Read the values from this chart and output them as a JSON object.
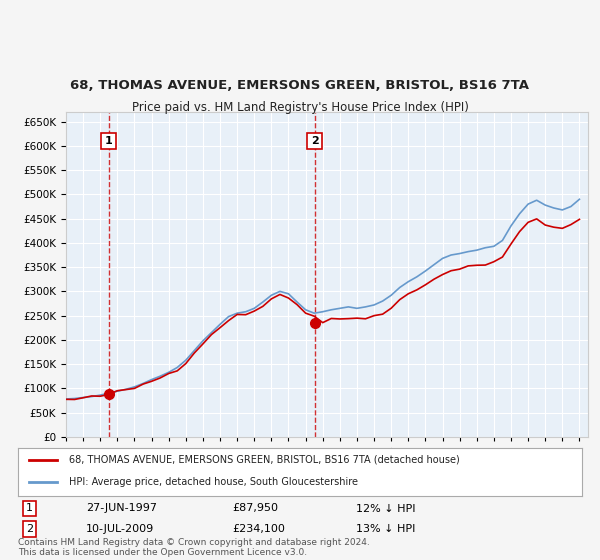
{
  "title1": "68, THOMAS AVENUE, EMERSONS GREEN, BRISTOL, BS16 7TA",
  "title2": "Price paid vs. HM Land Registry's House Price Index (HPI)",
  "xlabel": "",
  "ylabel": "",
  "ylim": [
    0,
    670000
  ],
  "yticks": [
    0,
    50000,
    100000,
    150000,
    200000,
    250000,
    300000,
    350000,
    400000,
    450000,
    500000,
    550000,
    600000,
    650000
  ],
  "bg_color": "#dce9f5",
  "plot_bg": "#e8f0f8",
  "grid_color": "#ffffff",
  "hpi_color": "#6699cc",
  "price_color": "#cc0000",
  "sale1_date": 1997.49,
  "sale1_price": 87950,
  "sale2_date": 2009.53,
  "sale2_price": 234100,
  "legend_label1": "68, THOMAS AVENUE, EMERSONS GREEN, BRISTOL, BS16 7TA (detached house)",
  "legend_label2": "HPI: Average price, detached house, South Gloucestershire",
  "note1_label": "1",
  "note1_date": "27-JUN-1997",
  "note1_price": "£87,950",
  "note1_hpi": "12% ↓ HPI",
  "note2_label": "2",
  "note2_date": "10-JUL-2009",
  "note2_price": "£234,100",
  "note2_hpi": "13% ↓ HPI",
  "copyright": "Contains HM Land Registry data © Crown copyright and database right 2024.\nThis data is licensed under the Open Government Licence v3.0."
}
